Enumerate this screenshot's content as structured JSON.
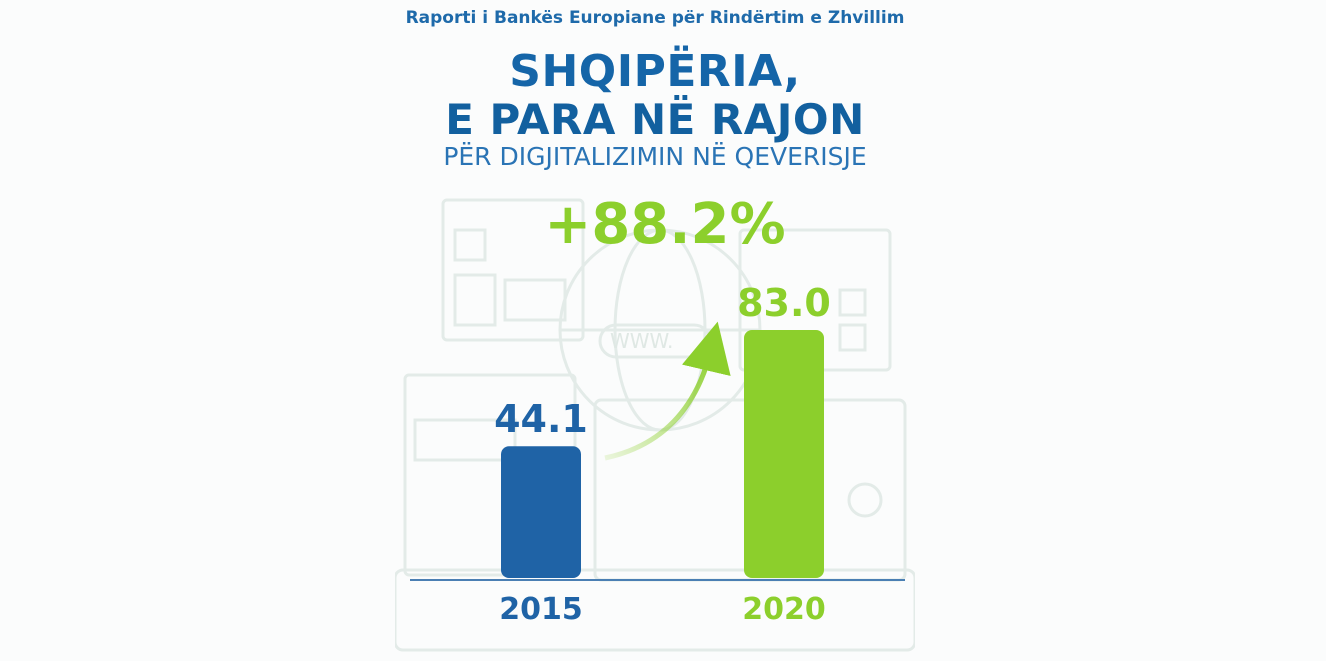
{
  "source_line": "Raporti i Bankës Europiane për Rindërtim e Zhvillim",
  "title_line1": "SHQIPËRIA,",
  "title_line2": "E PARA NË RAJON",
  "subtitle": "PËR DIGJITALIZIMIN NË QEVERISJE",
  "growth_label": "+88.2%",
  "background_text": "WWW.",
  "colors": {
    "blue": "#1f63a6",
    "green": "#8ccf2c",
    "baseline": "#4a7fb3"
  },
  "chart_data": {
    "type": "bar",
    "categories": [
      "2015",
      "2020"
    ],
    "values": [
      44.1,
      83.0
    ],
    "value_labels": [
      "44.1",
      "83.0"
    ],
    "bar_colors": [
      "#1f63a6",
      "#8ccf2c"
    ],
    "title": "",
    "xlabel": "",
    "ylabel": "",
    "ylim": [
      0,
      83.0
    ],
    "grid": false,
    "legend": "none"
  }
}
